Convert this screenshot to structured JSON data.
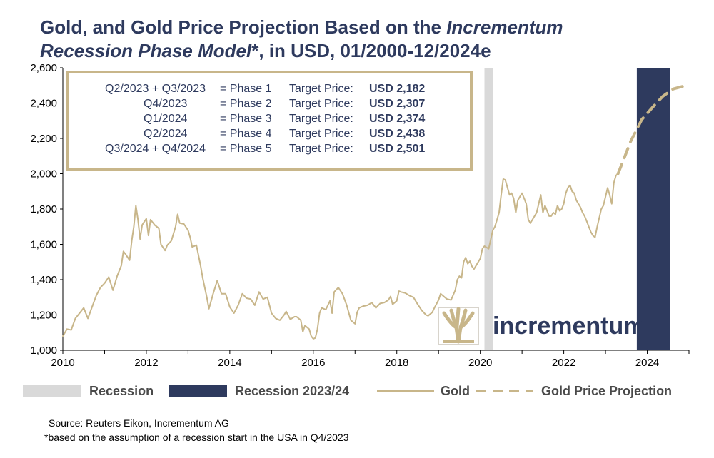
{
  "title": {
    "part1": "Gold, and Gold Price Projection Based on the ",
    "italic1": "Incrementum",
    "italic2": "Recession Phase Model",
    "part2": "*, in USD, 01/2000-12/2024e"
  },
  "infobox": {
    "rows": [
      {
        "period": "Q2/2023 + Q3/2023",
        "phase": "= Phase 1",
        "label": "Target Price:",
        "price": "USD 2,182"
      },
      {
        "period": "Q4/2023",
        "phase": "= Phase 2",
        "label": "Target Price:",
        "price": "USD 2,307"
      },
      {
        "period": "Q1/2024",
        "phase": "= Phase 3",
        "label": "Target Price:",
        "price": "USD 2,374"
      },
      {
        "period": "Q2/2024",
        "phase": "= Phase 4",
        "label": "Target Price:",
        "price": "USD 2,438"
      },
      {
        "period": "Q3/2024 + Q4/2024",
        "phase": "= Phase 5",
        "label": "Target Price:",
        "price": "USD 2,501"
      }
    ]
  },
  "logo": {
    "text": "incrementum"
  },
  "legend": {
    "recession": "Recession",
    "recession2324": "Recession 2023/24",
    "gold": "Gold",
    "projection": "Gold Price Projection"
  },
  "source": "Source: Reuters Eikon, Incrementum AG",
  "footnote": "*based on the assumption of a recession start in the USA in Q4/2023",
  "colors": {
    "gold": "#c8b68a",
    "navy": "#2e3a5e",
    "recession_gray": "#d9d9d9"
  },
  "chart_data": {
    "type": "line",
    "xlim": [
      2010,
      2025
    ],
    "ylim": [
      1000,
      2600
    ],
    "yticks": [
      1000,
      1200,
      1400,
      1600,
      1800,
      2000,
      2200,
      2400,
      2600
    ],
    "ytick_labels": [
      "1,000",
      "1,200",
      "1,400",
      "1,600",
      "1,800",
      "2,000",
      "2,200",
      "2,400",
      "2,600"
    ],
    "xticks": [
      2010,
      2012,
      2014,
      2016,
      2018,
      2020,
      2022,
      2024
    ],
    "xtick_labels": [
      "2010",
      "2012",
      "2014",
      "2016",
      "2018",
      "2020",
      "2022",
      "2024"
    ],
    "recession_bands": [
      {
        "name": "Recession",
        "start": 2020.1,
        "end": 2020.3
      },
      {
        "name": "Recession 2023/24",
        "start": 2023.75,
        "end": 2024.55
      }
    ],
    "series": [
      {
        "name": "Gold",
        "style": "solid",
        "points": [
          [
            2010.0,
            1080
          ],
          [
            2010.1,
            1120
          ],
          [
            2010.2,
            1115
          ],
          [
            2010.3,
            1180
          ],
          [
            2010.4,
            1210
          ],
          [
            2010.5,
            1240
          ],
          [
            2010.6,
            1180
          ],
          [
            2010.7,
            1245
          ],
          [
            2010.8,
            1310
          ],
          [
            2010.9,
            1355
          ],
          [
            2011.0,
            1380
          ],
          [
            2011.1,
            1415
          ],
          [
            2011.2,
            1340
          ],
          [
            2011.3,
            1420
          ],
          [
            2011.4,
            1480
          ],
          [
            2011.45,
            1560
          ],
          [
            2011.5,
            1545
          ],
          [
            2011.6,
            1510
          ],
          [
            2011.65,
            1620
          ],
          [
            2011.7,
            1700
          ],
          [
            2011.75,
            1820
          ],
          [
            2011.8,
            1740
          ],
          [
            2011.85,
            1630
          ],
          [
            2011.9,
            1710
          ],
          [
            2012.0,
            1745
          ],
          [
            2012.05,
            1650
          ],
          [
            2012.1,
            1740
          ],
          [
            2012.2,
            1710
          ],
          [
            2012.3,
            1690
          ],
          [
            2012.35,
            1600
          ],
          [
            2012.45,
            1565
          ],
          [
            2012.5,
            1595
          ],
          [
            2012.6,
            1620
          ],
          [
            2012.7,
            1700
          ],
          [
            2012.75,
            1770
          ],
          [
            2012.8,
            1720
          ],
          [
            2012.9,
            1715
          ],
          [
            2013.0,
            1680
          ],
          [
            2013.05,
            1640
          ],
          [
            2013.1,
            1585
          ],
          [
            2013.2,
            1595
          ],
          [
            2013.3,
            1480
          ],
          [
            2013.35,
            1410
          ],
          [
            2013.45,
            1300
          ],
          [
            2013.5,
            1235
          ],
          [
            2013.6,
            1320
          ],
          [
            2013.7,
            1395
          ],
          [
            2013.8,
            1320
          ],
          [
            2013.9,
            1320
          ],
          [
            2014.0,
            1245
          ],
          [
            2014.1,
            1210
          ],
          [
            2014.2,
            1255
          ],
          [
            2014.3,
            1320
          ],
          [
            2014.4,
            1295
          ],
          [
            2014.5,
            1290
          ],
          [
            2014.6,
            1255
          ],
          [
            2014.7,
            1330
          ],
          [
            2014.8,
            1290
          ],
          [
            2014.9,
            1300
          ],
          [
            2015.0,
            1210
          ],
          [
            2015.1,
            1180
          ],
          [
            2015.2,
            1170
          ],
          [
            2015.3,
            1200
          ],
          [
            2015.35,
            1220
          ],
          [
            2015.45,
            1175
          ],
          [
            2015.55,
            1190
          ],
          [
            2015.6,
            1190
          ],
          [
            2015.7,
            1170
          ],
          [
            2015.75,
            1105
          ],
          [
            2015.8,
            1140
          ],
          [
            2015.9,
            1120
          ],
          [
            2015.95,
            1080
          ],
          [
            2016.0,
            1065
          ],
          [
            2016.05,
            1070
          ],
          [
            2016.1,
            1120
          ],
          [
            2016.15,
            1210
          ],
          [
            2016.2,
            1240
          ],
          [
            2016.3,
            1230
          ],
          [
            2016.4,
            1280
          ],
          [
            2016.45,
            1210
          ],
          [
            2016.5,
            1330
          ],
          [
            2016.6,
            1355
          ],
          [
            2016.7,
            1320
          ],
          [
            2016.8,
            1255
          ],
          [
            2016.9,
            1170
          ],
          [
            2017.0,
            1150
          ],
          [
            2017.05,
            1215
          ],
          [
            2017.1,
            1240
          ],
          [
            2017.2,
            1250
          ],
          [
            2017.3,
            1255
          ],
          [
            2017.4,
            1270
          ],
          [
            2017.5,
            1240
          ],
          [
            2017.6,
            1265
          ],
          [
            2017.7,
            1270
          ],
          [
            2017.8,
            1285
          ],
          [
            2017.85,
            1305
          ],
          [
            2017.9,
            1260
          ],
          [
            2018.0,
            1280
          ],
          [
            2018.05,
            1335
          ],
          [
            2018.1,
            1330
          ],
          [
            2018.2,
            1325
          ],
          [
            2018.3,
            1310
          ],
          [
            2018.4,
            1300
          ],
          [
            2018.5,
            1260
          ],
          [
            2018.6,
            1225
          ],
          [
            2018.7,
            1200
          ],
          [
            2018.75,
            1195
          ],
          [
            2018.85,
            1215
          ],
          [
            2018.9,
            1240
          ],
          [
            2019.0,
            1285
          ],
          [
            2019.05,
            1320
          ],
          [
            2019.1,
            1310
          ],
          [
            2019.2,
            1290
          ],
          [
            2019.3,
            1285
          ],
          [
            2019.4,
            1340
          ],
          [
            2019.45,
            1400
          ],
          [
            2019.5,
            1420
          ],
          [
            2019.55,
            1410
          ],
          [
            2019.6,
            1500
          ],
          [
            2019.65,
            1525
          ],
          [
            2019.7,
            1490
          ],
          [
            2019.75,
            1505
          ],
          [
            2019.8,
            1475
          ],
          [
            2019.85,
            1460
          ],
          [
            2019.9,
            1480
          ],
          [
            2020.0,
            1520
          ],
          [
            2020.05,
            1575
          ],
          [
            2020.1,
            1590
          ],
          [
            2020.2,
            1575
          ],
          [
            2020.3,
            1680
          ],
          [
            2020.35,
            1700
          ],
          [
            2020.4,
            1740
          ],
          [
            2020.45,
            1780
          ],
          [
            2020.5,
            1880
          ],
          [
            2020.55,
            1970
          ],
          [
            2020.6,
            1965
          ],
          [
            2020.7,
            1880
          ],
          [
            2020.75,
            1890
          ],
          [
            2020.8,
            1860
          ],
          [
            2020.85,
            1780
          ],
          [
            2020.9,
            1850
          ],
          [
            2021.0,
            1890
          ],
          [
            2021.05,
            1860
          ],
          [
            2021.1,
            1830
          ],
          [
            2021.15,
            1740
          ],
          [
            2021.2,
            1720
          ],
          [
            2021.3,
            1760
          ],
          [
            2021.35,
            1780
          ],
          [
            2021.4,
            1830
          ],
          [
            2021.45,
            1880
          ],
          [
            2021.5,
            1780
          ],
          [
            2021.55,
            1820
          ],
          [
            2021.6,
            1790
          ],
          [
            2021.65,
            1760
          ],
          [
            2021.7,
            1760
          ],
          [
            2021.75,
            1780
          ],
          [
            2021.8,
            1770
          ],
          [
            2021.85,
            1820
          ],
          [
            2021.9,
            1790
          ],
          [
            2021.95,
            1800
          ],
          [
            2022.0,
            1830
          ],
          [
            2022.05,
            1890
          ],
          [
            2022.1,
            1920
          ],
          [
            2022.15,
            1935
          ],
          [
            2022.2,
            1900
          ],
          [
            2022.25,
            1890
          ],
          [
            2022.3,
            1850
          ],
          [
            2022.35,
            1830
          ],
          [
            2022.4,
            1810
          ],
          [
            2022.45,
            1780
          ],
          [
            2022.5,
            1760
          ],
          [
            2022.55,
            1730
          ],
          [
            2022.6,
            1700
          ],
          [
            2022.65,
            1670
          ],
          [
            2022.7,
            1650
          ],
          [
            2022.75,
            1640
          ],
          [
            2022.8,
            1700
          ],
          [
            2022.85,
            1750
          ],
          [
            2022.9,
            1800
          ],
          [
            2022.95,
            1820
          ],
          [
            2023.0,
            1870
          ],
          [
            2023.05,
            1920
          ],
          [
            2023.1,
            1880
          ],
          [
            2023.15,
            1830
          ],
          [
            2023.2,
            1950
          ],
          [
            2023.25,
            1990
          ],
          [
            2023.3,
            2000
          ]
        ]
      },
      {
        "name": "Gold Price Projection",
        "style": "dashed",
        "points": [
          [
            2023.3,
            2000
          ],
          [
            2023.45,
            2090
          ],
          [
            2023.6,
            2182
          ],
          [
            2023.87,
            2307
          ],
          [
            2024.12,
            2374
          ],
          [
            2024.37,
            2438
          ],
          [
            2024.62,
            2480
          ],
          [
            2024.95,
            2501
          ]
        ]
      }
    ]
  }
}
